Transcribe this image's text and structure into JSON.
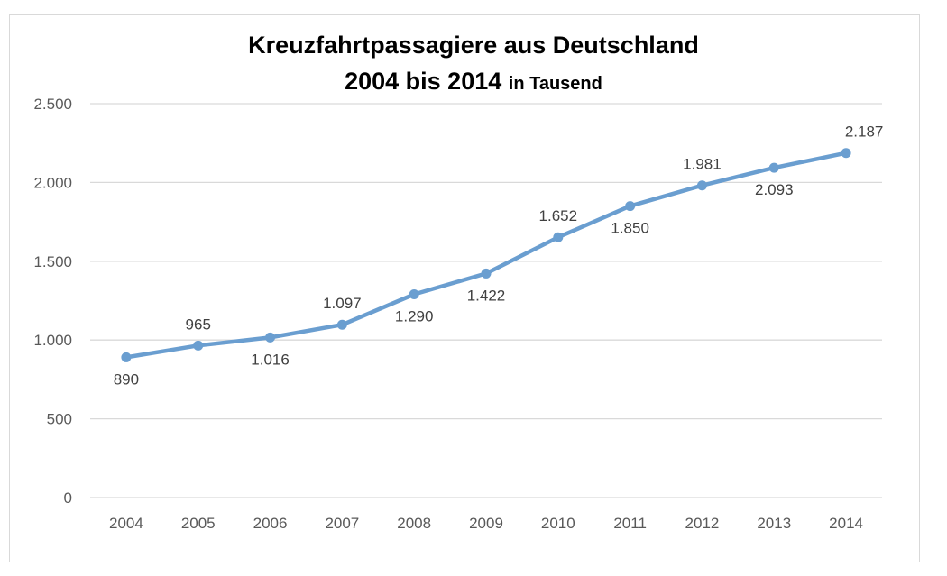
{
  "chart_data": {
    "type": "line",
    "title_line1": "Kreuzfahrtpassagiere aus Deutschland",
    "title_line2": "2004 bis 2014",
    "title_unit": "in Tausend",
    "categories": [
      "2004",
      "2005",
      "2006",
      "2007",
      "2008",
      "2009",
      "2010",
      "2011",
      "2012",
      "2013",
      "2014"
    ],
    "values": [
      890,
      965,
      1016,
      1097,
      1290,
      1422,
      1652,
      1850,
      1981,
      2093,
      2187
    ],
    "data_labels": [
      "890",
      "965",
      "1.016",
      "1.097",
      "1.290",
      "1.422",
      "1.652",
      "1.850",
      "1.981",
      "2.093",
      "2.187"
    ],
    "label_positions": [
      "below",
      "above",
      "below",
      "above",
      "below",
      "below",
      "above",
      "below",
      "above",
      "below",
      "above"
    ],
    "y_ticks": [
      0,
      500,
      1000,
      1500,
      2000,
      2500
    ],
    "y_tick_labels": [
      "0",
      "500",
      "1.000",
      "1.500",
      "2.000",
      "2.500"
    ],
    "ylim": [
      0,
      2500
    ],
    "grid": true,
    "legend": "none",
    "line_color": "#6a9ed0",
    "grid_color": "#d9d9d9"
  }
}
